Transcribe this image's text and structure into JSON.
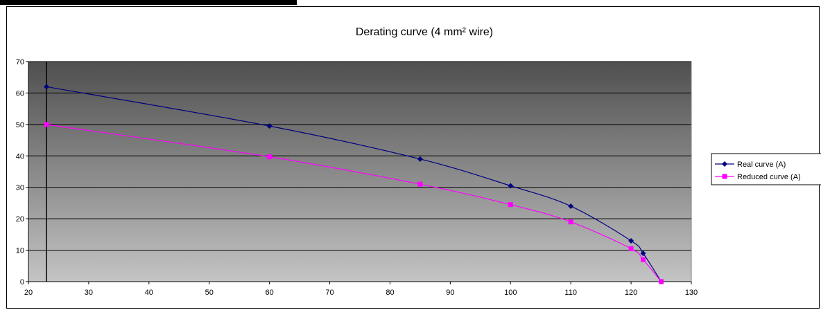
{
  "chart_data": {
    "type": "line",
    "title": "Derating curve (4 mm² wire)",
    "xlabel": "",
    "ylabel": "",
    "xlim": [
      20,
      130
    ],
    "ylim": [
      0,
      70
    ],
    "xticks": [
      20,
      30,
      40,
      50,
      60,
      70,
      80,
      90,
      100,
      110,
      120,
      130
    ],
    "yticks": [
      0,
      10,
      20,
      30,
      40,
      50,
      60,
      70
    ],
    "grid": "horizontal",
    "legend_position": "right",
    "plot_background": "gradient dark-gray to light-gray",
    "series": [
      {
        "name": "Real curve (A)",
        "color": "#000080",
        "marker": "diamond",
        "points": [
          {
            "x": 23,
            "y": 62
          },
          {
            "x": 60,
            "y": 49.5
          },
          {
            "x": 85,
            "y": 39
          },
          {
            "x": 100,
            "y": 30.5
          },
          {
            "x": 110,
            "y": 24
          },
          {
            "x": 120,
            "y": 13
          },
          {
            "x": 122,
            "y": 9
          },
          {
            "x": 125,
            "y": 0
          }
        ]
      },
      {
        "name": "Reduced curve (A)",
        "color": "#ff00ff",
        "marker": "square",
        "points": [
          {
            "x": 23,
            "y": 50
          },
          {
            "x": 60,
            "y": 39.7
          },
          {
            "x": 85,
            "y": 31
          },
          {
            "x": 100,
            "y": 24.5
          },
          {
            "x": 110,
            "y": 19
          },
          {
            "x": 120,
            "y": 10.5
          },
          {
            "x": 122,
            "y": 7
          },
          {
            "x": 125,
            "y": 0
          }
        ]
      }
    ]
  }
}
